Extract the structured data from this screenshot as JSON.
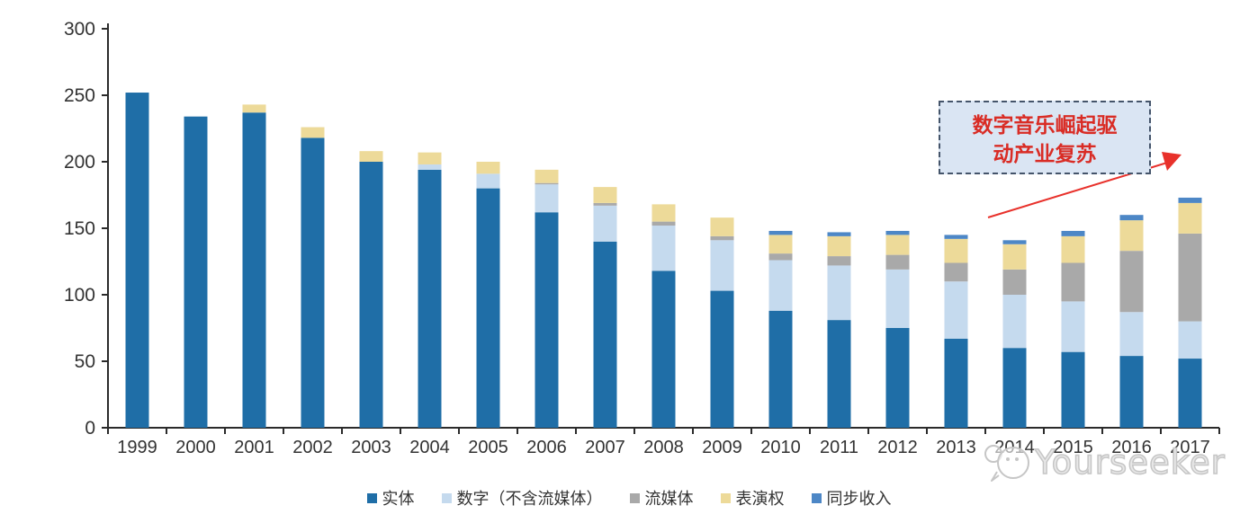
{
  "chart_data": {
    "type": "bar",
    "variant": "stacked",
    "title": "",
    "categories": [
      "1999",
      "2000",
      "2001",
      "2002",
      "2003",
      "2004",
      "2005",
      "2006",
      "2007",
      "2008",
      "2009",
      "2010",
      "2011",
      "2012",
      "2013",
      "2014",
      "2015",
      "2016",
      "2017"
    ],
    "series": [
      {
        "name": "实体",
        "color": "#1F6EA7",
        "values": [
          252,
          234,
          237,
          218,
          200,
          194,
          180,
          162,
          140,
          118,
          103,
          88,
          81,
          75,
          67,
          60,
          57,
          54,
          52
        ]
      },
      {
        "name": "数字（不含流媒体）",
        "color": "#C5DAEE",
        "values": [
          0,
          0,
          0,
          0,
          0,
          4,
          11,
          21,
          27,
          34,
          38,
          38,
          41,
          44,
          43,
          40,
          38,
          33,
          28
        ]
      },
      {
        "name": "流媒体",
        "color": "#A9A9A9",
        "values": [
          0,
          0,
          0,
          0,
          0,
          0,
          0,
          1,
          2,
          3,
          3,
          5,
          7,
          11,
          14,
          19,
          29,
          46,
          66
        ]
      },
      {
        "name": "表演权",
        "color": "#EDDA99",
        "values": [
          0,
          0,
          6,
          8,
          8,
          9,
          9,
          10,
          12,
          13,
          14,
          14,
          15,
          15,
          18,
          19,
          20,
          23,
          23
        ]
      },
      {
        "name": "同步收入",
        "color": "#4D87C6",
        "values": [
          0,
          0,
          0,
          0,
          0,
          0,
          0,
          0,
          0,
          0,
          0,
          3,
          3,
          3,
          3,
          3,
          4,
          4,
          4
        ]
      }
    ],
    "xlabel": "",
    "ylabel": "",
    "ylim": [
      0,
      300
    ],
    "yticks": [
      0,
      50,
      100,
      150,
      200,
      250,
      300
    ],
    "grid": false,
    "legend_position": "bottom",
    "axis_color": "#2b2b2b",
    "tick_label_color": "#333333"
  },
  "annotation": {
    "lines": [
      "数字音乐崛起驱",
      "动产业复苏"
    ],
    "full_text": "数字音乐崛起驱动产业复苏",
    "text_color": "#D92C25",
    "box_fill": "#DAE5F3",
    "box_border": "#44546A",
    "arrow_color": "#E8312B"
  },
  "watermark": {
    "text": "Yourseeker"
  }
}
